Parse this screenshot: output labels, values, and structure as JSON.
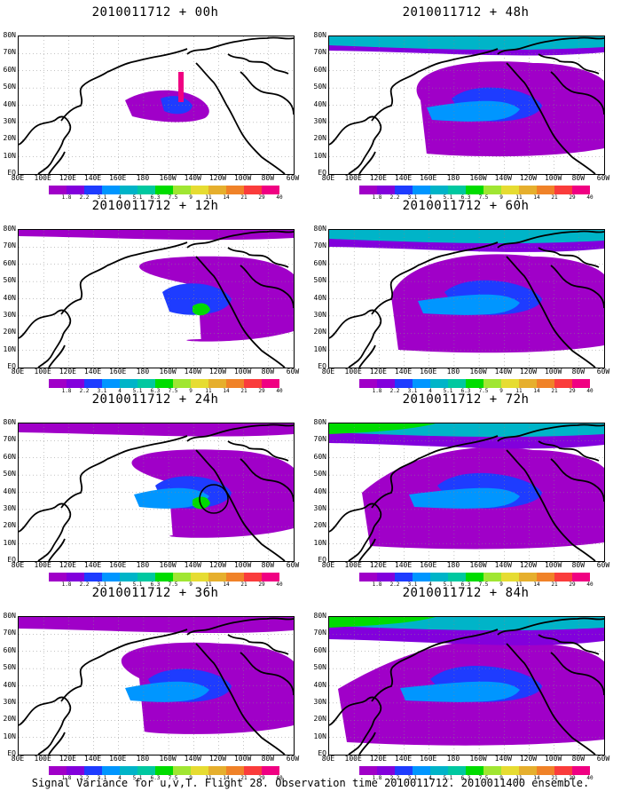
{
  "colorbar": {
    "labels": [
      "1.8",
      "2.2",
      "3.1",
      "4",
      "5.1",
      "6.3",
      "7.5",
      "9",
      "11",
      "14",
      "21",
      "29",
      "40"
    ],
    "colors": [
      "#a000c8",
      "#8200dc",
      "#1e3cff",
      "#0096ff",
      "#00b4c8",
      "#00c8a0",
      "#00dc00",
      "#a0e632",
      "#e6dc32",
      "#e6af2d",
      "#f08228",
      "#fa3c3c",
      "#f00082"
    ]
  },
  "lat_labels": [
    "EQ",
    "10N",
    "20N",
    "30N",
    "40N",
    "50N",
    "60N",
    "70N",
    "80N"
  ],
  "lon_labels": [
    "80E",
    "100E",
    "120E",
    "140E",
    "160E",
    "180",
    "160W",
    "140W",
    "120W",
    "100W",
    "80W",
    "60W"
  ],
  "panels": [
    {
      "title": "2010011712 + 00h"
    },
    {
      "title": "2010011712 + 48h"
    },
    {
      "title": "2010011712 + 12h"
    },
    {
      "title": "2010011712 + 60h"
    },
    {
      "title": "2010011712 + 24h"
    },
    {
      "title": "2010011712 + 72h"
    },
    {
      "title": "2010011712 + 36h"
    },
    {
      "title": "2010011712 + 84h"
    }
  ],
  "footer": "Signal Variance for u,v,T. Flight 28. Observation time 2010011712. 2010011400 ensemble."
}
